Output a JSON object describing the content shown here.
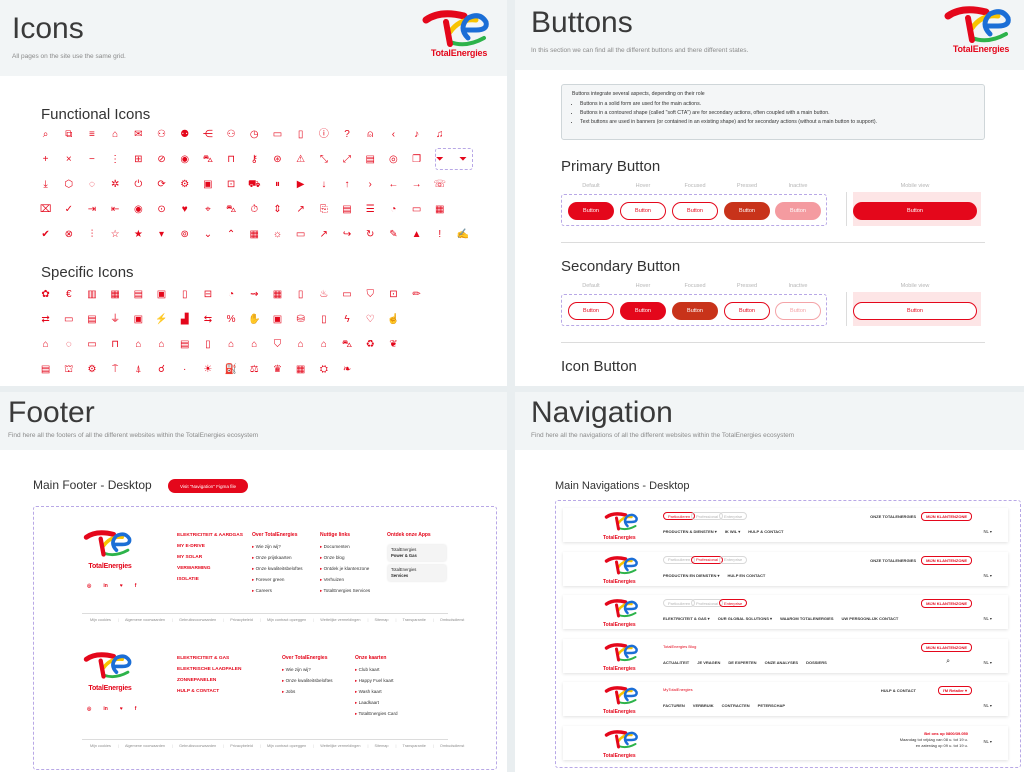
{
  "brand": {
    "wordmark": "TotalEnergies",
    "primary": "#e4071b",
    "accent_blue": "#1b6ed6",
    "accent_yellow": "#f8c300"
  },
  "icons_board": {
    "title": "Icons",
    "subtitle": "All pages on the site use the same grid.",
    "functional_title": "Functional Icons",
    "specific_title": "Specific Icons",
    "functional_rows": [
      [
        "search-icon",
        "external-link-icon",
        "menu-icon",
        "home-icon",
        "mail-icon",
        "user-icon",
        "users-icon",
        "share-icon",
        "user-check-icon",
        "clock-icon",
        "folder-icon",
        "file-icon",
        "info-icon",
        "help-icon",
        "account-icon",
        "chevron-left-icon",
        "mic-icon",
        "bell-icon"
      ],
      [
        "plus-icon",
        "close-icon",
        "minus-icon",
        "more-vertical-icon",
        "add-box-icon",
        "eye-off-icon",
        "eye-icon",
        "cart-icon",
        "bookmark-icon",
        "key-icon",
        "question-icon",
        "warning-icon",
        "collapse-icon",
        "expand-icon",
        "document-icon",
        "location-icon",
        "copy-icon",
        "filter-icon",
        "filter-off-icon"
      ],
      [
        "download-icon",
        "package-icon",
        "chat-icon",
        "settings-alt-icon",
        "power-icon",
        "refresh-icon",
        "gear-icon",
        "pdf-icon",
        "save-icon",
        "truck-icon",
        "pause-icon",
        "play-icon",
        "arrow-down-icon",
        "arrow-up-icon",
        "chevron-right-icon",
        "arrow-left-icon",
        "arrow-right-icon",
        "phone-icon"
      ],
      [
        "trash-icon",
        "check-icon",
        "logout-icon",
        "login-icon",
        "stop-icon",
        "record-icon",
        "heart-icon",
        "tag-icon",
        "cart-add-icon",
        "timer-icon",
        "sort-icon",
        "trend-up-icon",
        "file-copy-icon",
        "file-text-icon",
        "file-list-icon",
        "pie-chart-icon",
        "video-icon",
        "calendar-icon"
      ],
      [
        "check-circle-icon",
        "cancel-circle-icon",
        "sliders-icon",
        "star-outline-icon",
        "star-icon",
        "caret-down-icon",
        "pin-icon",
        "chevron-down-icon",
        "chevron-up-icon",
        "calendar-date-icon",
        "lightbulb-icon",
        "card-icon",
        "arrow-up-right-icon",
        "forward-icon",
        "reload-icon",
        "edit-icon",
        "chevron-up-box-icon",
        "alert-icon",
        "note-edit-icon"
      ]
    ],
    "specific_rows": [
      [
        "palette-icon",
        "euro-icon",
        "building-icon",
        "solar-panel-icon",
        "invoice-icon",
        "bill-icon",
        "receipt-icon",
        "meter-icon",
        "gauge-icon",
        "route-icon",
        "calculator-icon",
        "tablet-icon",
        "flame-icon",
        "monitor-icon",
        "shield-icon",
        "badge-icon",
        "pencil-icon"
      ],
      [
        "transfer-icon",
        "card-swipe-icon",
        "contract-icon",
        "plug-icon",
        "id-card-icon",
        "ev-icon",
        "chart-bar-icon",
        "exchange-icon",
        "percent-icon",
        "hand-icon",
        "charger-icon",
        "database-icon",
        "phone-device-icon",
        "bolt-icon",
        "heart-outline-icon",
        "thumbs-up-icon"
      ],
      [
        "house-icon",
        "message-icon",
        "screen-icon",
        "sofa-icon",
        "home-energy-icon",
        "home-solar-icon",
        "news-icon",
        "document-alt-icon",
        "home-alt-icon",
        "home-euro-icon",
        "shield-alt-icon",
        "house-outline-icon",
        "house-plus-icon",
        "car-icon",
        "recycle-icon",
        "heart-hand-icon"
      ],
      [
        "layout-icon",
        "bank-icon",
        "gear-alt-icon",
        "antenna-icon",
        "lamp-icon",
        "bulb-icon",
        "dot-icon",
        "sun-icon",
        "charging-station-icon",
        "scale-icon",
        "trophy-icon",
        "store-icon",
        "factory-icon",
        "leaf-icon"
      ]
    ]
  },
  "buttons_board": {
    "title": "Buttons",
    "subtitle": "In this section we can find all the different buttons and there different states.",
    "note_intro": "Buttons integrate several aspects, depending on their role",
    "note_items": [
      "Buttons in a solid form are used for the main actions.",
      "Buttons in a contoured shape (called \"soft CTA\") are for secondary actions, often coupled with a main button.",
      "Text buttons are used in banners (or contained in an existing shape) and for secondary actions (without a main button to support)."
    ],
    "primary_title": "Primary Button",
    "secondary_title": "Secondary Button",
    "icon_title": "Icon Button",
    "states": [
      "Default",
      "Hover",
      "Focused",
      "Pressed",
      "Inactive"
    ],
    "mobile_label": "Mobile view",
    "button_label": "Button"
  },
  "footer_board": {
    "title": "Footer",
    "subtitle": "Find here all the footers of all the different websites within the TotalEnergies ecosystem",
    "section_title": "Main Footer - Desktop",
    "cta": "Visit \"Navigation\" Figma file",
    "footer1": {
      "red_links": [
        "ELEKTRICITEIT & AARDGAS",
        "MY E-DRIVE",
        "MY SOLAR",
        "VERWARMING",
        "ISOLATIE"
      ],
      "col1_head": "Over TotalEnergies",
      "col1": [
        "Wie zijn wij?",
        "Onze prijskaarten",
        "Onze kwaliteitsbeloftes",
        "Forever green",
        "Careers"
      ],
      "col2_head": "Nuttige links",
      "col2": [
        "Documenten",
        "Onze blog",
        "Ontdek je klantenzone",
        "Verhuizen",
        "TotalEnergies Services"
      ],
      "col3_head": "Ontdek onze Apps",
      "apps": [
        {
          "line1": "TotalEnergies",
          "line2": "Power & Gas"
        },
        {
          "line1": "TotalEnergies",
          "line2": "Services"
        }
      ],
      "legal": [
        "Mijn cookies",
        "Algemene voorwaarden",
        "Gebruiksvoorwaarden",
        "Privacybeleid",
        "Mijn contract opzeggen",
        "Wettelijke vermeldingen",
        "Sitemap",
        "Transparantie",
        "Ombudsdienst"
      ]
    },
    "footer2": {
      "red_links": [
        "ELEKTRICITEIT & GAS",
        "ELEKTRISCHE LAADPALEN",
        "ZONNEPANELEN",
        "HULP & CONTACT"
      ],
      "col1_head": "Over TotalEnergies",
      "col1": [
        "Wie zijn wij?",
        "Onze kwaliteitsbeloftes",
        "Jobs"
      ],
      "col2_head": "Onze kaarten",
      "col2": [
        "Club kaart",
        "Happy Fuel kaart",
        "Wash kaart",
        "Laadkaart",
        "TotalEnergies Card"
      ],
      "legal": [
        "Mijn cookies",
        "Algemene voorwaarden",
        "Gebruiksvoorwaarden",
        "Privacybeleid",
        "Mijn contract opzeggen",
        "Wettelijke vermeldingen",
        "Sitemap",
        "Transparantie",
        "Ombudsdienst"
      ]
    },
    "socials": [
      "◎",
      "in",
      "♥",
      "f"
    ]
  },
  "nav_board": {
    "title": "Navigation",
    "subtitle": "Find here all the navigations of all the different websites within the TotalEnergies ecosystem",
    "section_title": "Main Navigations - Desktop",
    "navs": [
      {
        "pills": [
          "Particulieren",
          "Professional",
          "Enterprise"
        ],
        "active": 0,
        "menu": [
          "PRODUCTEN & DIENSTEN ▾",
          "IK WIL ▾",
          "HULP & CONTACT"
        ],
        "right_link": "ONZE TOTALENERGIES",
        "cta": "MIJN KLANTENZONE",
        "lang": "NL ▾"
      },
      {
        "pills": [
          "Particulieren",
          "Professional",
          "Enterprise"
        ],
        "active": 1,
        "menu": [
          "PRODUCTEN EN DIENSTEN ▾",
          "HULP EN CONTACT"
        ],
        "right_link": "ONZE TOTALENERGIES",
        "cta": "MIJN KLANTENZONE",
        "lang": "NL ▾"
      },
      {
        "pills": [
          "Particulieren",
          "Professional",
          "Enterprise"
        ],
        "active": 2,
        "menu": [
          "ELEKTRICITEIT & GAS ▾",
          "OUR GLOBAL SOLUTIONS ▾",
          "WAAROM TOTALENERGIES",
          "UW PERSOONLIJK CONTACT"
        ],
        "right_link": "",
        "cta": "MIJN KLANTENZONE",
        "lang": "NL ▾"
      },
      {
        "brand_link": "TotalEnergies Blog",
        "menu": [
          "ACTUALITEIT",
          "JE VRAGEN",
          "DE EXPERTEN",
          "ONZE ANALYSES",
          "DOSSIERS"
        ],
        "cta": "MIJN KLANTENZONE",
        "lang": "NL ▾"
      },
      {
        "brand_link": "MyTotalEnergies",
        "menu": [
          "FACTUREN",
          "VERBRUIK",
          "CONTRACTEN",
          "PETERSCHAP"
        ],
        "right_link": "HULP & CONTACT",
        "cta": "I'M Retailer ▾",
        "lang": "NL ▾"
      },
      {
        "contact_line1": "Bel ons op 0800/39.050",
        "contact_line2": "Maandag tot vrijdag van 08 u. tot 19 u.",
        "contact_line3": "en zaterdag op 09 u. tot 19 u.",
        "lang": "NL ▾"
      }
    ]
  }
}
